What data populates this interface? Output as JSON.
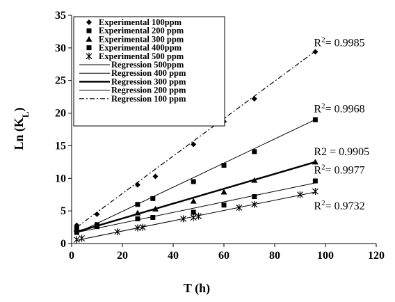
{
  "chart_data": {
    "type": "scatter",
    "title": "",
    "xlabel": "T (h)",
    "ylabel": "Ln (K",
    "ylabel_sub": "L",
    "ylabel_close": ")",
    "xlim": [
      0,
      120
    ],
    "ylim": [
      0,
      35
    ],
    "x_ticks": [
      0,
      20,
      40,
      60,
      80,
      100,
      120
    ],
    "y_ticks": [
      0,
      5,
      10,
      15,
      20,
      25,
      30,
      35
    ],
    "grid": false,
    "legend_position": "top-left",
    "series": [
      {
        "name": "Experimental 100ppm",
        "marker": "diamond",
        "x": [
          2,
          10,
          26,
          33,
          48,
          60,
          72,
          96
        ],
        "y": [
          2.8,
          4.5,
          9.0,
          10.3,
          15.2,
          18.7,
          22.2,
          29.4
        ]
      },
      {
        "name": "Experimental 200 ppm",
        "marker": "square",
        "x": [
          2,
          10,
          26,
          32,
          48,
          60,
          72,
          96
        ],
        "y": [
          2.3,
          2.9,
          6.0,
          6.9,
          9.5,
          12.0,
          14.1,
          19.0
        ]
      },
      {
        "name": "Experimental 300 ppm",
        "marker": "triangle",
        "x": [
          2,
          10,
          26,
          33,
          48,
          60,
          72,
          96
        ],
        "y": [
          2.2,
          2.8,
          4.7,
          5.3,
          6.5,
          7.9,
          9.7,
          12.5
        ]
      },
      {
        "name": "Experimental 400ppm",
        "marker": "square",
        "x": [
          2,
          10,
          26,
          32,
          48,
          60,
          72,
          96
        ],
        "y": [
          1.7,
          2.6,
          3.8,
          4.0,
          4.8,
          5.9,
          7.2,
          9.6
        ]
      },
      {
        "name": "Experimental 500 ppm",
        "marker": "star",
        "x": [
          2,
          4,
          18,
          26,
          28,
          44,
          48,
          50,
          66,
          72,
          90,
          96
        ],
        "y": [
          0.6,
          0.8,
          1.8,
          2.4,
          2.5,
          3.8,
          4.0,
          4.2,
          5.5,
          6.0,
          7.5,
          8.0
        ]
      }
    ],
    "regressions": [
      {
        "name": "Regression 500ppm",
        "style": "thin",
        "x": [
          2,
          96
        ],
        "y": [
          0.5,
          7.9
        ]
      },
      {
        "name": "Regression 400 ppm",
        "style": "thin",
        "x": [
          2,
          96
        ],
        "y": [
          1.7,
          9.3
        ]
      },
      {
        "name": "Regression 300 ppm",
        "style": "bold",
        "x": [
          2,
          96
        ],
        "y": [
          1.8,
          12.5
        ]
      },
      {
        "name": "Regression 200 ppm",
        "style": "thin",
        "x": [
          2,
          96
        ],
        "y": [
          1.6,
          19.0
        ]
      },
      {
        "name": "Regression 100 ppm",
        "style": "dashdot",
        "x": [
          2,
          96
        ],
        "y": [
          2.5,
          29.5
        ]
      }
    ],
    "annotations": [
      {
        "r2": true,
        "text": "R",
        "sup": "2",
        "value": "= 0.9985",
        "x": 96,
        "y": 29.6
      },
      {
        "r2": true,
        "text": "R",
        "sup": "2",
        "value": "= 0.9968",
        "x": 96,
        "y": 19.5
      },
      {
        "r2": false,
        "text": "R2 = 0.9905",
        "x": 96,
        "y": 12.9
      },
      {
        "r2": true,
        "text": "R",
        "sup": "2",
        "value": "= 0.9977",
        "x": 96,
        "y": 10.1
      },
      {
        "r2": true,
        "text": "R",
        "sup": "2",
        "value": "= 0.9732",
        "x": 96,
        "y": 4.6
      }
    ]
  }
}
